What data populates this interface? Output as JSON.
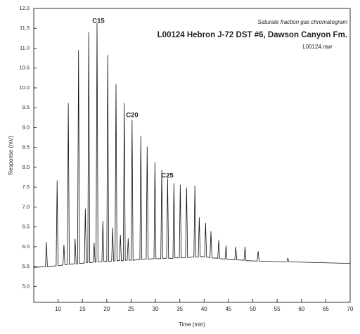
{
  "chart_data": {
    "type": "line",
    "subtitle": "Saturate fraction gas chromatogram",
    "title": "L00124  Hebron J-72  DST #6, Dawson Canyon Fm.",
    "file_label": "L00124.raw",
    "x_label": "Time (min)",
    "y_label": "Response (mV)",
    "annotations": [
      "C15",
      "C20",
      "C25"
    ],
    "xlim": [
      5,
      70
    ],
    "ylim": [
      4.6,
      12.0
    ],
    "xticks": [
      10,
      15,
      20,
      25,
      30,
      35,
      40,
      45,
      50,
      55,
      60,
      65,
      70
    ],
    "yticks": [
      {
        "value": 5,
        "label": "5.0"
      },
      5.5,
      {
        "value": 6,
        "label": "6.0"
      },
      6.5,
      {
        "value": 7,
        "label": "7.0"
      },
      7.5,
      {
        "value": 8,
        "label": "8.0"
      },
      8.5,
      {
        "value": 9,
        "label": "9.0"
      },
      9.5,
      {
        "value": 10,
        "label": "10.0"
      },
      10.5,
      {
        "value": 11,
        "label": "11.0"
      },
      11.5,
      {
        "value": 12,
        "label": "12.0"
      }
    ],
    "grid": false,
    "series": [
      {
        "color": "#111111",
        "x": [
          5.0,
          7.4,
          7.6,
          7.8,
          9.6,
          9.8,
          10.0,
          11.0,
          11.2,
          11.4,
          11.9,
          12.1,
          12.3,
          13.3,
          13.5,
          13.7,
          14.0,
          14.2,
          14.4,
          15.4,
          15.6,
          15.8,
          16.1,
          16.3,
          16.5,
          17.2,
          17.4,
          17.6,
          17.8,
          18.0,
          18.2,
          19.0,
          19.2,
          19.4,
          20.0,
          20.2,
          20.4,
          21.0,
          21.2,
          21.4,
          21.7,
          21.9,
          22.1,
          22.6,
          22.8,
          23.0,
          23.4,
          23.6,
          23.8,
          24.2,
          24.4,
          24.6,
          25.0,
          25.2,
          25.4,
          26.8,
          27.0,
          27.2,
          28.1,
          28.3,
          28.5,
          29.7,
          29.9,
          30.1,
          31.1,
          31.3,
          31.5,
          32.3,
          32.5,
          32.7,
          33.6,
          33.8,
          34.0,
          34.9,
          35.1,
          35.3,
          36.2,
          36.4,
          36.6,
          37.9,
          38.1,
          38.3,
          38.8,
          39.0,
          39.2,
          40.1,
          40.3,
          40.5,
          41.2,
          41.4,
          41.6,
          42.8,
          43.0,
          43.2,
          44.3,
          44.5,
          44.7,
          46.3,
          46.5,
          46.7,
          48.2,
          48.4,
          48.6,
          50.9,
          51.1,
          51.3,
          57.0,
          57.2,
          57.4,
          70.0
        ],
        "values": [
          5.48,
          5.5,
          6.12,
          5.5,
          5.52,
          7.67,
          5.52,
          5.54,
          6.05,
          5.55,
          5.55,
          9.62,
          5.56,
          5.57,
          6.2,
          5.57,
          5.57,
          10.95,
          5.58,
          5.59,
          6.96,
          5.6,
          5.6,
          11.4,
          5.6,
          5.61,
          6.1,
          5.61,
          5.61,
          11.63,
          5.62,
          5.62,
          6.65,
          5.63,
          5.63,
          10.83,
          5.63,
          5.64,
          6.48,
          5.64,
          5.64,
          10.1,
          5.65,
          5.65,
          6.3,
          5.65,
          5.65,
          9.62,
          5.66,
          5.66,
          6.21,
          5.66,
          5.66,
          9.19,
          5.66,
          5.68,
          8.79,
          5.68,
          5.69,
          8.52,
          5.69,
          5.7,
          8.13,
          5.7,
          5.7,
          7.93,
          5.71,
          5.71,
          7.72,
          5.71,
          5.71,
          7.6,
          5.72,
          5.72,
          7.56,
          5.72,
          5.73,
          7.49,
          5.73,
          5.74,
          7.54,
          5.74,
          5.74,
          6.74,
          5.75,
          5.75,
          6.6,
          5.74,
          5.73,
          6.39,
          5.72,
          5.71,
          6.17,
          5.7,
          5.69,
          6.03,
          5.68,
          5.67,
          6.0,
          5.67,
          5.66,
          6.0,
          5.65,
          5.64,
          5.89,
          5.64,
          5.62,
          5.71,
          5.62,
          5.58
        ]
      }
    ]
  }
}
